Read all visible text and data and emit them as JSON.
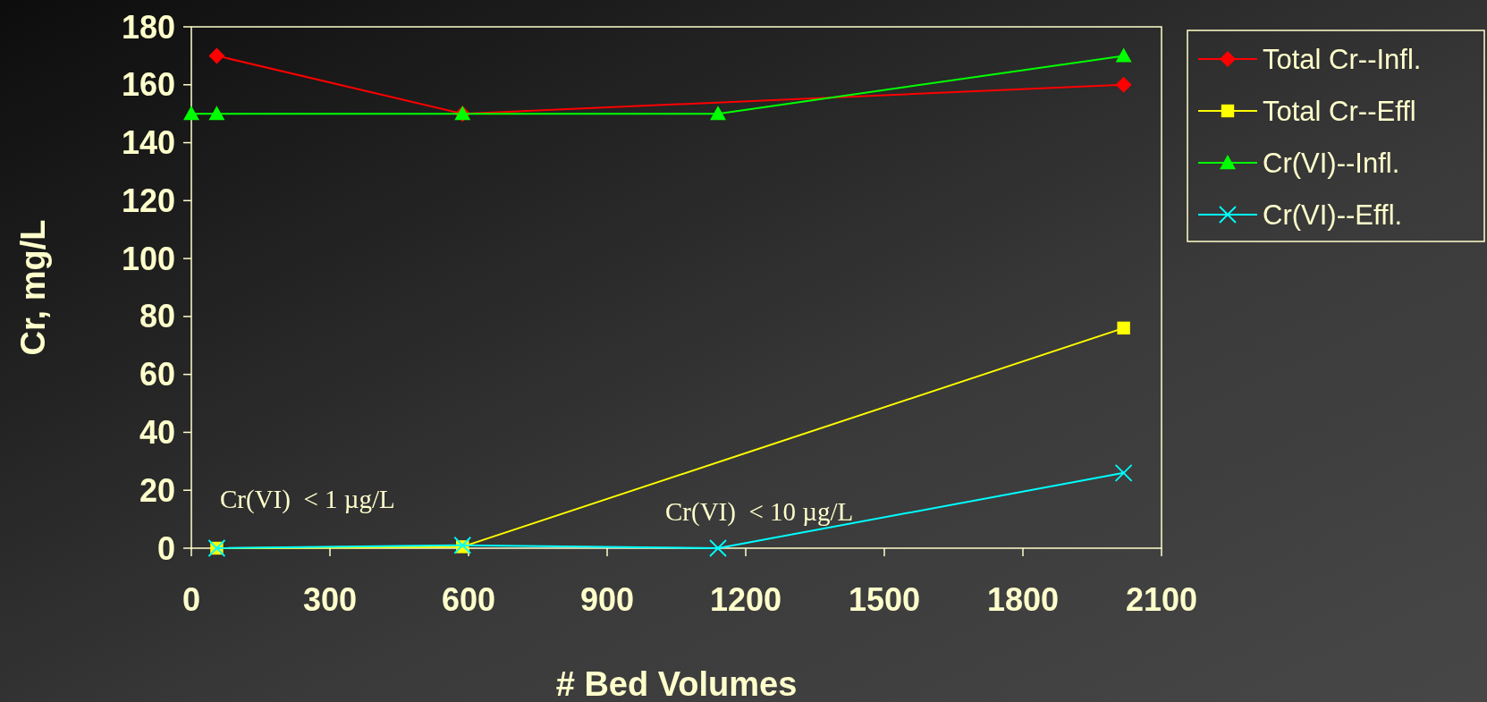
{
  "chart_data": {
    "type": "line",
    "xlabel": "# Bed Volumes",
    "ylabel": "Cr, mg/L",
    "xlim": [
      0,
      2100
    ],
    "xticks": [
      0,
      300,
      600,
      900,
      1200,
      1500,
      1800,
      2100
    ],
    "ylim": [
      0,
      180
    ],
    "yticks": [
      0,
      20,
      40,
      60,
      80,
      100,
      120,
      140,
      160,
      180
    ],
    "grid": false,
    "legend": "top right",
    "series": [
      {
        "name": "Total Cr--Infl.",
        "color": "#ff0000",
        "marker": "diamond",
        "x": [
          55,
          587,
          2018
        ],
        "values": [
          170,
          150,
          160
        ]
      },
      {
        "name": "Total Cr--Effl",
        "color": "#ffff00",
        "marker": "square",
        "x": [
          55,
          587,
          2018
        ],
        "values": [
          0,
          0.5,
          76
        ]
      },
      {
        "name": "Cr(VI)--Infl.",
        "color": "#00ff00",
        "marker": "triangle",
        "x": [
          0,
          55,
          587,
          1140,
          2018
        ],
        "values": [
          150,
          150,
          150,
          150,
          170
        ]
      },
      {
        "name": "Cr(VI)--Effl.",
        "color": "#00ffff",
        "marker": "cross",
        "x": [
          55,
          587,
          1140,
          2018
        ],
        "values": [
          0,
          1,
          0,
          26
        ]
      }
    ],
    "annotations": [
      "Cr(VI)  < 1 µg/L",
      "Cr(VI)  < 10 µg/L"
    ]
  }
}
